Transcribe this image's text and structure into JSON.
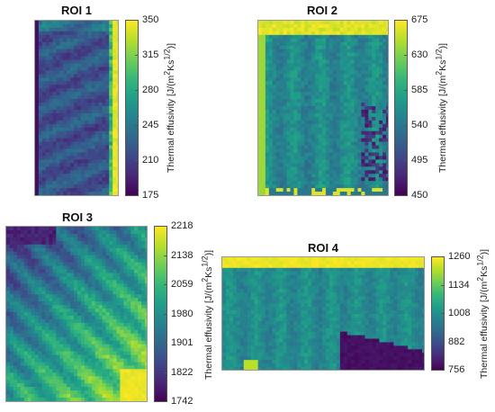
{
  "figure": {
    "colormap": "viridis",
    "colormap_stops": [
      "#440154",
      "#482777",
      "#3e4989",
      "#31688e",
      "#26828e",
      "#1f9e89",
      "#35b779",
      "#6ece58",
      "#b5de2b",
      "#fde725"
    ]
  },
  "chart_data": [
    {
      "type": "heatmap",
      "title": "ROI 1",
      "colorbar_label": "Thermal effusivity [J/(m²Ks^(1/2))]",
      "clim": [
        175,
        350
      ],
      "colorbar_ticks": [
        "350",
        "315",
        "280",
        "245",
        "210",
        "175"
      ],
      "notes": "Mostly dark purple/blue field with a bright yellow band along the right edge"
    },
    {
      "type": "heatmap",
      "title": "ROI 2",
      "colorbar_label": "Thermal effusivity [J/(m²Ks^(1/2))]",
      "clim": [
        450,
        675
      ],
      "colorbar_ticks": [
        "675",
        "630",
        "585",
        "540",
        "495",
        "450"
      ],
      "notes": "Teal field with a yellow top band and dark purple speckles at lower right"
    },
    {
      "type": "heatmap",
      "title": "ROI 3",
      "colorbar_label": "Thermal effusivity [J/(m²Ks^(1/2))]",
      "clim": [
        1742,
        2218
      ],
      "colorbar_ticks": [
        "2218",
        "2138",
        "2059",
        "1980",
        "1901",
        "1822",
        "1742"
      ],
      "notes": "Diagonal stripes from dark upper-left to bright yellow-green lower-right"
    },
    {
      "type": "heatmap",
      "title": "ROI 4",
      "colorbar_label": "Thermal effusivity [J/(m²Ks^(1/2))]",
      "clim": [
        756,
        1260
      ],
      "colorbar_ticks": [
        "1260",
        "1134",
        "1008",
        "882",
        "756"
      ],
      "notes": "Teal field with a bright yellow top strip and a dark purple wedge at lower right"
    }
  ]
}
